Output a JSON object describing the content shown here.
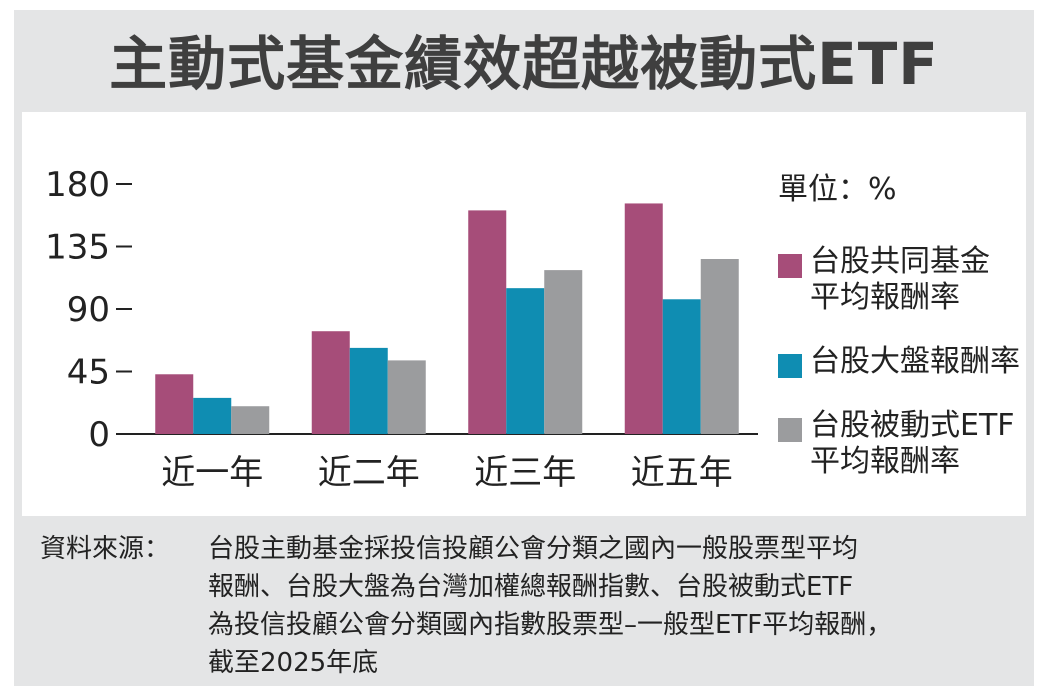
{
  "title": "主動式基金績效超越被動式ETF",
  "unit_label": "單位：%",
  "source_label": "資料來源：",
  "source_lines": [
    "台股主動基金採投信投顧公會分類之國內一般股票型平均",
    "報酬、台股大盤為台灣加權總報酬指數、台股被動式ETF",
    "為投信投顧公會分類國內指數股票型–一般型ETF平均報酬，",
    "截至2025年底"
  ],
  "chart_data": {
    "type": "bar",
    "categories": [
      "近一年",
      "近二年",
      "近三年",
      "近五年"
    ],
    "series": [
      {
        "name": "台股共同基金平均報酬率",
        "legend_lines": [
          "台股共同基金",
          "平均報酬率"
        ],
        "color": "#a64d79",
        "values": [
          43,
          74,
          161,
          166
        ]
      },
      {
        "name": "台股大盤報酬率",
        "legend_lines": [
          "台股大盤報酬率"
        ],
        "color": "#0f8db2",
        "values": [
          26,
          62,
          105,
          97
        ]
      },
      {
        "name": "台股被動式ETF平均報酬率",
        "legend_lines": [
          "台股被動式ETF",
          "平均報酬率"
        ],
        "color": "#9b9c9e",
        "values": [
          20,
          53,
          118,
          126
        ]
      }
    ],
    "yticks": [
      "0",
      "45",
      "90",
      "135",
      "180"
    ],
    "ylim": [
      0,
      180
    ]
  }
}
